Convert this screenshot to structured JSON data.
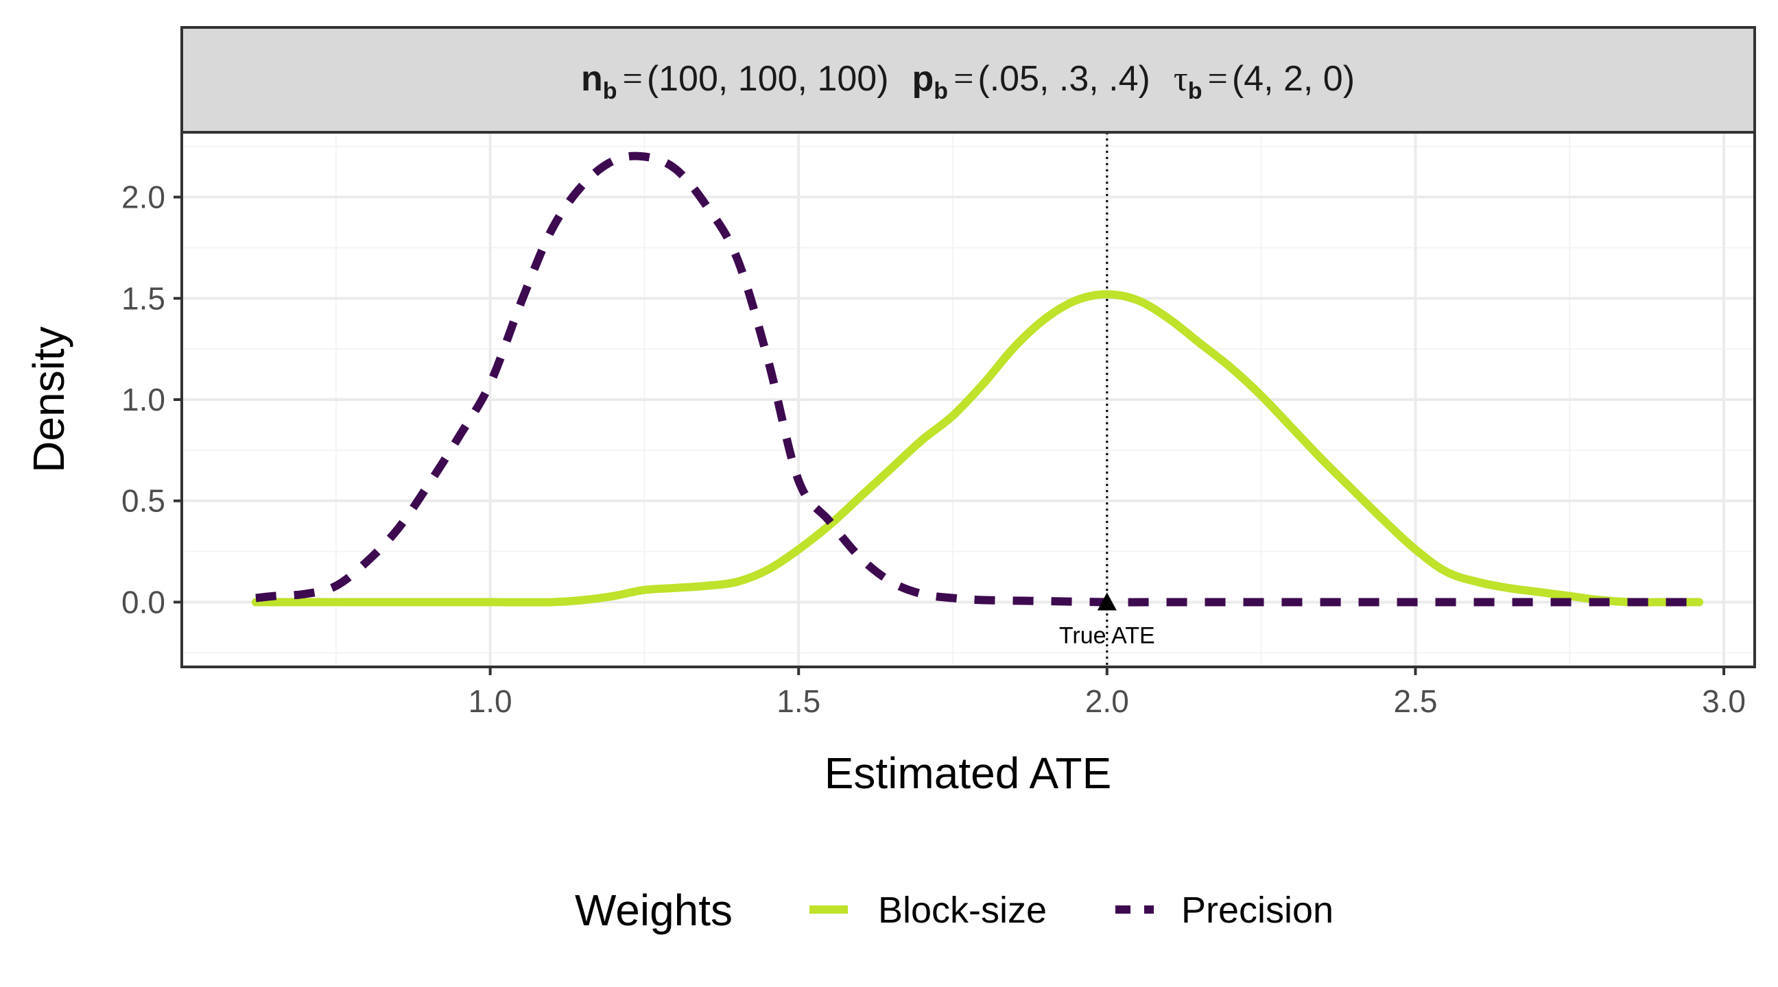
{
  "strip": {
    "n_sym": "n",
    "n_sub": "b",
    "n_val": "(100, 100, 100)",
    "p_sym": "p",
    "p_sub": "b",
    "p_val": "(.05, .3, .4)",
    "tau_sym": "τ",
    "tau_sub": "b",
    "tau_val": "(4, 2, 0)",
    "eq": "="
  },
  "colors": {
    "block_size": "#bfe22b",
    "precision": "#3d0a4f",
    "strip_bg": "#d9d9d9",
    "grid_major": "#ebebeb",
    "grid_minor": "#f4f4f4",
    "panel_border": "#333333"
  },
  "chart_data": {
    "type": "line",
    "xlabel": "Estimated ATE",
    "ylabel": "Density",
    "xlim": [
      0.5,
      3.05
    ],
    "ylim": [
      -0.32,
      2.32
    ],
    "x_ticks": [
      1.0,
      1.5,
      2.0,
      2.5,
      3.0
    ],
    "x_tick_labels": [
      "1.0",
      "1.5",
      "2.0",
      "2.5",
      "3.0"
    ],
    "y_ticks": [
      0.0,
      0.5,
      1.0,
      1.5,
      2.0
    ],
    "y_tick_labels": [
      "0.0",
      "0.5",
      "1.0",
      "1.5",
      "2.0"
    ],
    "grid": true,
    "legend_position": "bottom",
    "legend_title": "Weights",
    "series": [
      {
        "name": "Block-size",
        "style": "solid",
        "x": [
          0.62,
          0.7,
          0.8,
          0.9,
          1.0,
          1.1,
          1.15,
          1.2,
          1.25,
          1.3,
          1.35,
          1.4,
          1.45,
          1.5,
          1.55,
          1.6,
          1.65,
          1.7,
          1.75,
          1.8,
          1.85,
          1.9,
          1.95,
          2.0,
          2.05,
          2.1,
          2.15,
          2.2,
          2.25,
          2.3,
          2.35,
          2.4,
          2.45,
          2.5,
          2.55,
          2.6,
          2.65,
          2.7,
          2.75,
          2.8,
          2.85,
          2.9,
          2.96
        ],
        "y": [
          0.0,
          0.0,
          0.0,
          0.0,
          0.0,
          0.0,
          0.01,
          0.03,
          0.06,
          0.07,
          0.08,
          0.1,
          0.16,
          0.26,
          0.38,
          0.52,
          0.66,
          0.8,
          0.92,
          1.08,
          1.26,
          1.4,
          1.49,
          1.52,
          1.49,
          1.4,
          1.28,
          1.16,
          1.02,
          0.86,
          0.7,
          0.55,
          0.4,
          0.26,
          0.15,
          0.1,
          0.07,
          0.05,
          0.03,
          0.01,
          0.0,
          0.0,
          0.0
        ]
      },
      {
        "name": "Precision",
        "style": "dashed",
        "x": [
          0.62,
          0.65,
          0.7,
          0.75,
          0.8,
          0.85,
          0.9,
          0.95,
          1.0,
          1.05,
          1.1,
          1.15,
          1.2,
          1.25,
          1.3,
          1.35,
          1.4,
          1.45,
          1.5,
          1.55,
          1.6,
          1.65,
          1.7,
          1.75,
          1.8,
          1.9,
          2.0,
          2.1,
          2.2,
          2.4,
          2.6,
          2.8,
          2.96
        ],
        "y": [
          0.02,
          0.03,
          0.04,
          0.08,
          0.2,
          0.36,
          0.58,
          0.82,
          1.08,
          1.48,
          1.84,
          2.06,
          2.18,
          2.2,
          2.14,
          1.96,
          1.7,
          1.2,
          0.6,
          0.4,
          0.22,
          0.1,
          0.04,
          0.02,
          0.01,
          0.005,
          0.0,
          0.0,
          0.0,
          0.0,
          0.0,
          0.0,
          0.0
        ]
      }
    ],
    "annotations": [
      {
        "text": "True ATE",
        "x": 2.0,
        "y": 0.0,
        "vline": true
      }
    ]
  }
}
